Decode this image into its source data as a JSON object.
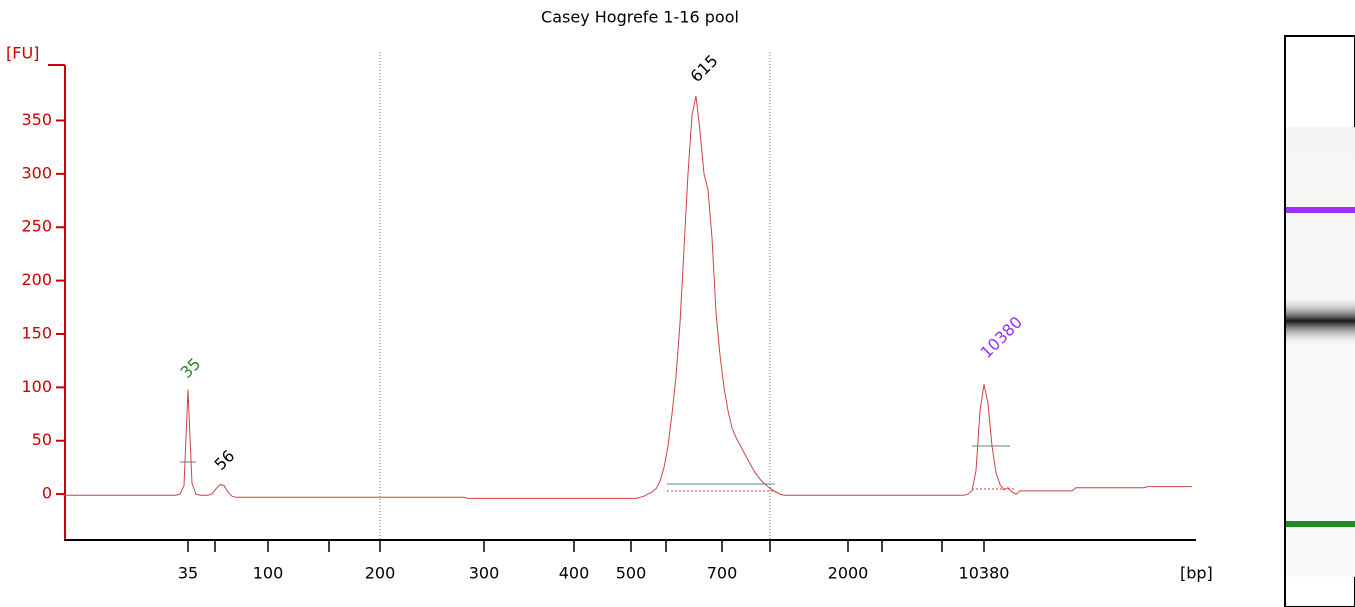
{
  "chart_data": {
    "type": "line",
    "title": "Casey Hogrefe 1-16 pool",
    "ylabel": "[FU]",
    "xlabel": "[bp]",
    "color": "#cc4444",
    "ylim": [
      -43,
      402
    ],
    "yticks": [
      0,
      50,
      100,
      150,
      200,
      250,
      300,
      350
    ],
    "xticks": [
      35,
      null,
      100,
      null,
      200,
      300,
      400,
      500,
      null,
      700,
      null,
      2000,
      null,
      null,
      10380
    ],
    "peaks": [
      {
        "size": 35,
        "color": "#228b22"
      },
      {
        "size": 56,
        "color": "#000000"
      },
      {
        "size": 615,
        "color": "#000000"
      },
      {
        "size": 10380,
        "color": "#9b30ff"
      }
    ],
    "values": [
      -1,
      -1,
      -1,
      -1,
      -1,
      -1,
      -1,
      -1,
      -1,
      -1,
      -1,
      -1,
      -1,
      -1,
      -1,
      -1,
      -1,
      -1,
      -1,
      -1,
      -1,
      -1,
      -1,
      -1,
      -1,
      -1,
      -1,
      -1,
      -1,
      0,
      8,
      98,
      10,
      0,
      -1,
      -1,
      -1,
      0,
      5,
      9,
      8,
      2,
      -2,
      -3,
      -3,
      -3,
      -3,
      -3,
      -3,
      -3,
      -3,
      -3,
      -3,
      -3,
      -3,
      -3,
      -3,
      -3,
      -3,
      -3,
      -3,
      -3,
      -3,
      -3,
      -3,
      -3,
      -3,
      -3,
      -3,
      -3,
      -3,
      -3,
      -3,
      -3,
      -3,
      -3,
      -3,
      -3,
      -3,
      -3,
      -3,
      -3,
      -3,
      -3,
      -3,
      -3,
      -3,
      -3,
      -3,
      -3,
      -3,
      -3,
      -3,
      -3,
      -3,
      -3,
      -3,
      -3,
      -3,
      -3,
      -3,
      -4,
      -4,
      -4,
      -4,
      -4,
      -4,
      -4,
      -4,
      -4,
      -4,
      -4,
      -4,
      -4,
      -4,
      -4,
      -4,
      -4,
      -4,
      -4,
      -4,
      -4,
      -4,
      -4,
      -4,
      -4,
      -4,
      -4,
      -4,
      -4,
      -4,
      -4,
      -4,
      -4,
      -4,
      -4,
      -4,
      -4,
      -4,
      -4,
      -4,
      -4,
      -4,
      -4,
      -3,
      -2,
      0,
      2,
      5,
      12,
      25,
      45,
      75,
      110,
      160,
      230,
      300,
      355,
      373,
      340,
      300,
      285,
      240,
      170,
      130,
      100,
      78,
      62,
      53,
      46,
      39,
      32,
      25,
      19,
      14,
      10,
      7,
      4,
      2,
      0,
      -1,
      -1,
      -1,
      -1,
      -1,
      -1,
      -1,
      -1,
      -1,
      -1,
      -1,
      -1,
      -1,
      -1,
      -1,
      -1,
      -1,
      -1,
      -1,
      -1,
      -1,
      -1,
      -1,
      -1,
      -1,
      -1,
      -1,
      -1,
      -1,
      -1,
      -1,
      -1,
      -1,
      -1,
      -1,
      -1,
      -1,
      -1,
      -1,
      -1,
      -1,
      -1,
      -1,
      -1,
      -1,
      -1,
      0,
      3,
      22,
      78,
      103,
      85,
      45,
      20,
      9,
      4,
      6,
      2,
      0,
      3,
      3,
      3,
      3,
      3,
      3,
      3,
      3,
      3,
      3,
      3,
      3,
      3,
      3,
      6,
      6,
      6,
      6,
      6,
      6,
      6,
      6,
      6,
      6,
      6,
      6,
      6,
      6,
      6,
      6,
      6,
      6,
      7,
      7,
      7,
      7,
      7,
      7,
      7,
      7,
      7,
      7,
      7,
      7
    ]
  }
}
